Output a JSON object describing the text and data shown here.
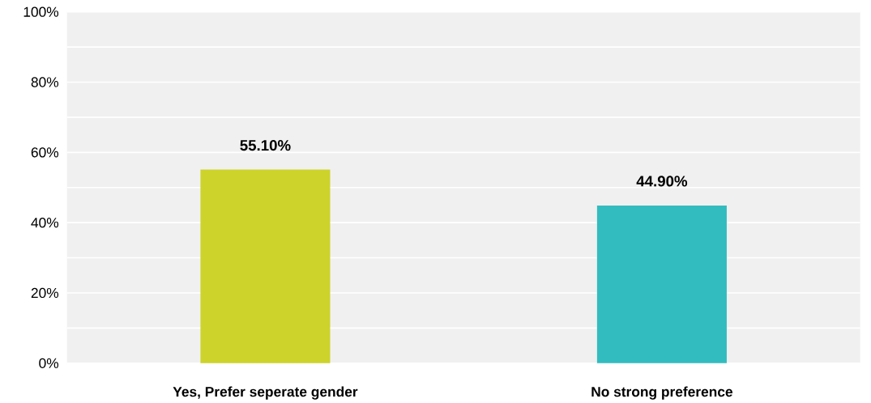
{
  "chart_data": {
    "type": "bar",
    "categories": [
      "Yes, Prefer seperate gender",
      "No strong preference"
    ],
    "values": [
      55.1,
      44.9
    ],
    "colors": [
      "#cdd32a",
      "#33bcbf"
    ],
    "value_labels": [
      "55.10%",
      "44.90%"
    ],
    "ylim": [
      0,
      100
    ],
    "yticks": [
      {
        "value": 0,
        "label": "0%"
      },
      {
        "value": 10,
        "label": null
      },
      {
        "value": 20,
        "label": "20%"
      },
      {
        "value": 30,
        "label": null
      },
      {
        "value": 40,
        "label": "40%"
      },
      {
        "value": 50,
        "label": null
      },
      {
        "value": 60,
        "label": "60%"
      },
      {
        "value": 70,
        "label": null
      },
      {
        "value": 80,
        "label": "80%"
      },
      {
        "value": 90,
        "label": null
      },
      {
        "value": 100,
        "label": "100%"
      }
    ],
    "grid": "y"
  }
}
